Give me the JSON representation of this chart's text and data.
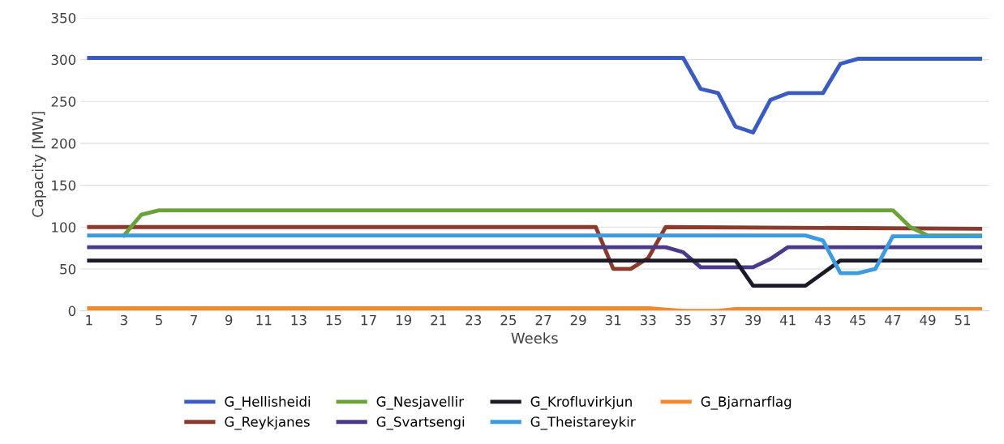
{
  "chart_data": {
    "type": "line",
    "xlabel": "Weeks",
    "ylabel": "Capacity [MW]",
    "xlim": [
      0.5,
      52.5
    ],
    "xticks": [
      1,
      3,
      5,
      7,
      9,
      11,
      13,
      15,
      17,
      19,
      21,
      23,
      25,
      27,
      29,
      31,
      33,
      35,
      37,
      39,
      41,
      43,
      45,
      47,
      49,
      51
    ],
    "ylim": [
      0,
      350
    ],
    "yticks": [
      0,
      50,
      100,
      150,
      200,
      250,
      300,
      350
    ],
    "grid": "y",
    "legend": "bottom",
    "marker": "none",
    "line_style": "solid",
    "series": [
      {
        "name": "G_Hellisheidi",
        "color": "#3a5bbf",
        "x": [
          1,
          35,
          36,
          37,
          38,
          39,
          40,
          41,
          43,
          44,
          45,
          52
        ],
        "values": [
          302,
          302,
          265,
          260,
          220,
          213,
          252,
          260,
          260,
          295,
          301,
          301
        ]
      },
      {
        "name": "G_Reykjanes",
        "color": "#8b3a2b",
        "x": [
          1,
          30,
          31,
          32,
          33,
          34,
          52
        ],
        "values": [
          100,
          100,
          50,
          50,
          63,
          100,
          98
        ]
      },
      {
        "name": "G_Nesjavellir",
        "color": "#6aa23a",
        "x": [
          3,
          4,
          5,
          47,
          48,
          49,
          52
        ],
        "values": [
          90,
          115,
          120,
          120,
          100,
          90,
          90
        ]
      },
      {
        "name": "G_Svartsengi",
        "color": "#4b3a8a",
        "x": [
          1,
          34,
          35,
          36,
          39,
          40,
          41,
          52
        ],
        "values": [
          76,
          76,
          70,
          52,
          52,
          62,
          76,
          76
        ]
      },
      {
        "name": "G_Krofluvirkjun",
        "color": "#1a1a2a",
        "x": [
          1,
          38,
          39,
          42,
          43,
          44,
          52
        ],
        "values": [
          60,
          60,
          30,
          30,
          45,
          60,
          60
        ]
      },
      {
        "name": "G_Theistareykir",
        "color": "#3d9be0",
        "x": [
          1,
          42,
          43,
          44,
          45,
          46,
          47,
          52
        ],
        "values": [
          90,
          90,
          84,
          45,
          45,
          50,
          89,
          89
        ]
      },
      {
        "name": "G_Bjarnarflag",
        "color": "#f5882a",
        "x": [
          1,
          33,
          35,
          37,
          38,
          52
        ],
        "values": [
          3,
          3,
          0,
          0,
          2,
          2
        ]
      }
    ]
  }
}
